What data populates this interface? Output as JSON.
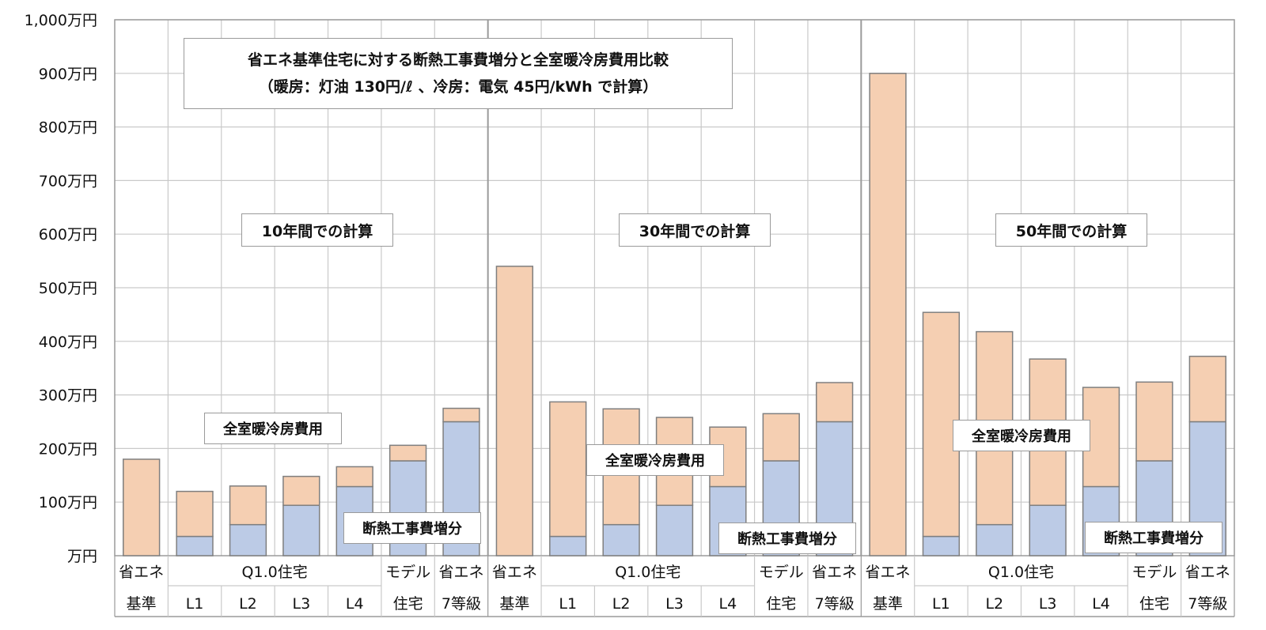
{
  "chart_data": {
    "type": "bar",
    "stacked": true,
    "title": "省エネ基準住宅に対する断熱工事費増分と全室暖冷房費用比較",
    "subtitle": "（暖房：灯油 130円/ℓ 、冷房：電気 45円/kWh で計算）",
    "y_ticks": [
      "万円",
      "100万円",
      "200万円",
      "300万円",
      "400万円",
      "500万円",
      "600万円",
      "700万円",
      "800万円",
      "900万円",
      "1,000万円"
    ],
    "ylim": [
      0,
      1000
    ],
    "grid": true,
    "colors": {
      "insulation": "#bccbe6",
      "heating_cooling": "#f5cfb2",
      "border": "#7f7f7f"
    },
    "groups": [
      {
        "label": "10年間での計算",
        "categories": [
          {
            "top": "省エネ",
            "bottom": "基準",
            "insulation": 0,
            "heating_cooling": 180
          },
          {
            "top": "",
            "bottom": "L1",
            "insulation": 36,
            "heating_cooling": 84
          },
          {
            "top": "",
            "bottom": "L2",
            "insulation": 58,
            "heating_cooling": 72
          },
          {
            "top": "",
            "bottom": "L3",
            "insulation": 94,
            "heating_cooling": 54
          },
          {
            "top": "",
            "bottom": "L4",
            "insulation": 129,
            "heating_cooling": 37
          },
          {
            "top": "モデル",
            "bottom": "住宅",
            "insulation": 177,
            "heating_cooling": 29
          },
          {
            "top": "省エネ",
            "bottom": "7等級",
            "insulation": 250,
            "heating_cooling": 25
          }
        ],
        "q_label": "Q1.0住宅",
        "series_labels": {
          "heating_cooling": "全室暖冷房費用",
          "insulation": "断熱工事費増分"
        }
      },
      {
        "label": "30年間での計算",
        "categories": [
          {
            "top": "省エネ",
            "bottom": "基準",
            "insulation": 0,
            "heating_cooling": 540
          },
          {
            "top": "",
            "bottom": "L1",
            "insulation": 36,
            "heating_cooling": 251
          },
          {
            "top": "",
            "bottom": "L2",
            "insulation": 58,
            "heating_cooling": 216
          },
          {
            "top": "",
            "bottom": "L3",
            "insulation": 94,
            "heating_cooling": 164
          },
          {
            "top": "",
            "bottom": "L4",
            "insulation": 129,
            "heating_cooling": 111
          },
          {
            "top": "モデル",
            "bottom": "住宅",
            "insulation": 177,
            "heating_cooling": 88
          },
          {
            "top": "省エネ",
            "bottom": "7等級",
            "insulation": 250,
            "heating_cooling": 73
          }
        ],
        "q_label": "Q1.0住宅",
        "series_labels": {
          "heating_cooling": "全室暖冷房費用",
          "insulation": "断熱工事費増分"
        }
      },
      {
        "label": "50年間での計算",
        "categories": [
          {
            "top": "省エネ",
            "bottom": "基準",
            "insulation": 0,
            "heating_cooling": 900
          },
          {
            "top": "",
            "bottom": "L1",
            "insulation": 36,
            "heating_cooling": 418
          },
          {
            "top": "",
            "bottom": "L2",
            "insulation": 58,
            "heating_cooling": 360
          },
          {
            "top": "",
            "bottom": "L3",
            "insulation": 94,
            "heating_cooling": 273
          },
          {
            "top": "",
            "bottom": "L4",
            "insulation": 129,
            "heating_cooling": 185
          },
          {
            "top": "モデル",
            "bottom": "住宅",
            "insulation": 177,
            "heating_cooling": 147
          },
          {
            "top": "省エネ",
            "bottom": "7等級",
            "insulation": 250,
            "heating_cooling": 122
          }
        ],
        "q_label": "Q1.0住宅",
        "series_labels": {
          "heating_cooling": "全室暖冷房費用",
          "insulation": "断熱工事費増分"
        }
      }
    ]
  }
}
